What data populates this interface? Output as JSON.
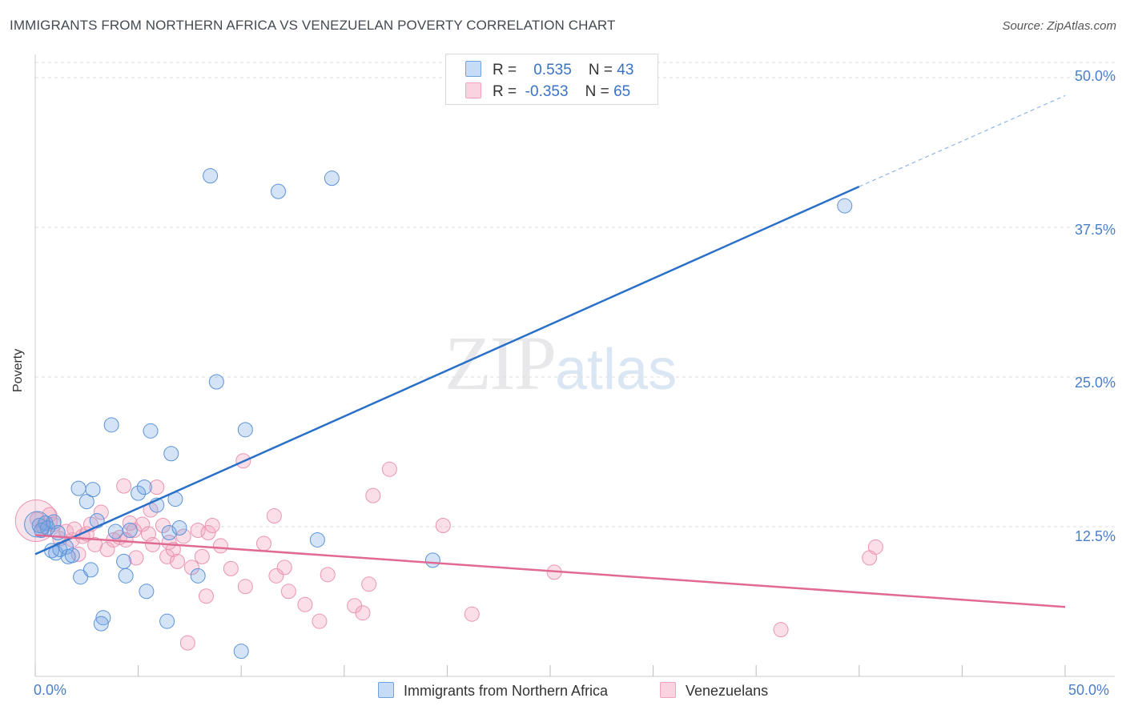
{
  "header": {
    "title": "IMMIGRANTS FROM NORTHERN AFRICA VS VENEZUELAN POVERTY CORRELATION CHART",
    "source": "Source: ZipAtlas.com"
  },
  "watermark": {
    "zip": "ZIP",
    "atlas": "atlas"
  },
  "legend": {
    "r_label": "R =",
    "n_label": "N =",
    "series1": {
      "r": "0.535",
      "n": "43"
    },
    "series2": {
      "r": "-0.353",
      "n": "65"
    }
  },
  "chart_data": {
    "type": "scatter",
    "title": "IMMIGRANTS FROM NORTHERN AFRICA VS VENEZUELAN POVERTY CORRELATION CHART",
    "xlabel": "",
    "ylabel": "Poverty",
    "xlim": [
      0,
      50
    ],
    "ylim": [
      0,
      50
    ],
    "y_ticks": [
      12.5,
      25.0,
      37.5,
      50.0
    ],
    "y_tick_labels": [
      "12.5%",
      "25.0%",
      "37.5%",
      "50.0%"
    ],
    "x_tick_labels": [
      "0.0%",
      "50.0%"
    ],
    "grid": true,
    "colors": {
      "blue": "#6fa3e0",
      "blue_line": "#2a70c8",
      "pink": "#f2a3bd",
      "pink_line": "#e06a93"
    },
    "series": [
      {
        "name": "Immigrants from Northern Africa",
        "color": "#6fa3e0",
        "trend": {
          "x0": 0,
          "y0": 10.2,
          "x1": 40,
          "y1": 40.9,
          "dashed_to_x": 50,
          "dashed_to_y": 48.5
        },
        "points": [
          [
            0.2,
            12.6
          ],
          [
            0.3,
            12.2
          ],
          [
            0.5,
            12.8
          ],
          [
            0.6,
            12.4
          ],
          [
            0.8,
            10.5
          ],
          [
            0.9,
            12.9
          ],
          [
            1.0,
            10.3
          ],
          [
            1.1,
            12.0
          ],
          [
            1.2,
            10.6
          ],
          [
            1.5,
            10.8
          ],
          [
            1.6,
            10.0
          ],
          [
            1.8,
            10.1
          ],
          [
            2.1,
            15.7
          ],
          [
            2.2,
            8.3
          ],
          [
            2.5,
            14.6
          ],
          [
            2.7,
            8.9
          ],
          [
            2.8,
            15.6
          ],
          [
            3.0,
            13.0
          ],
          [
            3.3,
            4.9
          ],
          [
            3.2,
            4.4
          ],
          [
            3.7,
            21.0
          ],
          [
            3.9,
            12.1
          ],
          [
            4.3,
            9.6
          ],
          [
            4.4,
            8.4
          ],
          [
            4.6,
            12.2
          ],
          [
            5.0,
            15.3
          ],
          [
            5.3,
            15.8
          ],
          [
            5.4,
            7.1
          ],
          [
            5.6,
            20.5
          ],
          [
            5.9,
            14.3
          ],
          [
            6.4,
            4.6
          ],
          [
            6.5,
            12.0
          ],
          [
            6.6,
            18.6
          ],
          [
            6.8,
            14.8
          ],
          [
            7.0,
            12.4
          ],
          [
            7.9,
            8.4
          ],
          [
            8.5,
            41.8
          ],
          [
            8.8,
            24.6
          ],
          [
            10.2,
            20.6
          ],
          [
            10.0,
            2.1
          ],
          [
            11.8,
            40.5
          ],
          [
            13.7,
            11.4
          ],
          [
            14.4,
            41.6
          ],
          [
            19.3,
            9.7
          ],
          [
            39.3,
            39.3
          ]
        ]
      },
      {
        "name": "Venezuelans",
        "color": "#f2a3bd",
        "trend": {
          "x0": 0,
          "y0": 11.8,
          "x1": 50,
          "y1": 5.8
        },
        "points": [
          [
            0.1,
            13.1
          ],
          [
            0.4,
            12.5
          ],
          [
            0.7,
            13.5
          ],
          [
            0.9,
            12.7
          ],
          [
            1.2,
            11.5
          ],
          [
            1.5,
            12.1
          ],
          [
            1.8,
            11.4
          ],
          [
            1.9,
            12.3
          ],
          [
            2.1,
            10.2
          ],
          [
            2.3,
            11.7
          ],
          [
            2.5,
            11.9
          ],
          [
            2.7,
            12.7
          ],
          [
            2.9,
            11.0
          ],
          [
            3.2,
            13.7
          ],
          [
            3.5,
            10.6
          ],
          [
            3.8,
            11.4
          ],
          [
            4.1,
            11.6
          ],
          [
            4.3,
            15.9
          ],
          [
            4.4,
            11.4
          ],
          [
            4.6,
            12.8
          ],
          [
            4.8,
            12.2
          ],
          [
            4.9,
            9.9
          ],
          [
            5.2,
            12.7
          ],
          [
            5.5,
            11.9
          ],
          [
            5.6,
            13.9
          ],
          [
            5.7,
            11.0
          ],
          [
            5.9,
            15.8
          ],
          [
            6.2,
            12.6
          ],
          [
            6.4,
            10.0
          ],
          [
            6.5,
            11.2
          ],
          [
            6.7,
            10.6
          ],
          [
            6.9,
            9.6
          ],
          [
            7.2,
            11.7
          ],
          [
            7.4,
            2.8
          ],
          [
            7.6,
            9.1
          ],
          [
            7.9,
            12.2
          ],
          [
            8.1,
            10.0
          ],
          [
            8.3,
            6.7
          ],
          [
            8.4,
            12.0
          ],
          [
            8.6,
            12.6
          ],
          [
            9.0,
            10.9
          ],
          [
            9.5,
            9.0
          ],
          [
            10.1,
            18.0
          ],
          [
            10.2,
            7.5
          ],
          [
            11.1,
            11.1
          ],
          [
            11.6,
            13.4
          ],
          [
            11.7,
            8.4
          ],
          [
            12.1,
            9.1
          ],
          [
            12.3,
            7.1
          ],
          [
            13.1,
            6.0
          ],
          [
            13.8,
            4.6
          ],
          [
            14.2,
            8.5
          ],
          [
            15.5,
            5.9
          ],
          [
            15.9,
            5.3
          ],
          [
            16.2,
            7.7
          ],
          [
            16.4,
            15.1
          ],
          [
            17.2,
            17.3
          ],
          [
            19.8,
            12.6
          ],
          [
            21.2,
            5.2
          ],
          [
            25.2,
            8.7
          ],
          [
            36.2,
            3.9
          ],
          [
            40.5,
            9.9
          ],
          [
            40.8,
            10.8
          ]
        ]
      }
    ]
  },
  "bottom_legend": {
    "item1": "Immigrants from Northern Africa",
    "item2": "Venezuelans"
  }
}
